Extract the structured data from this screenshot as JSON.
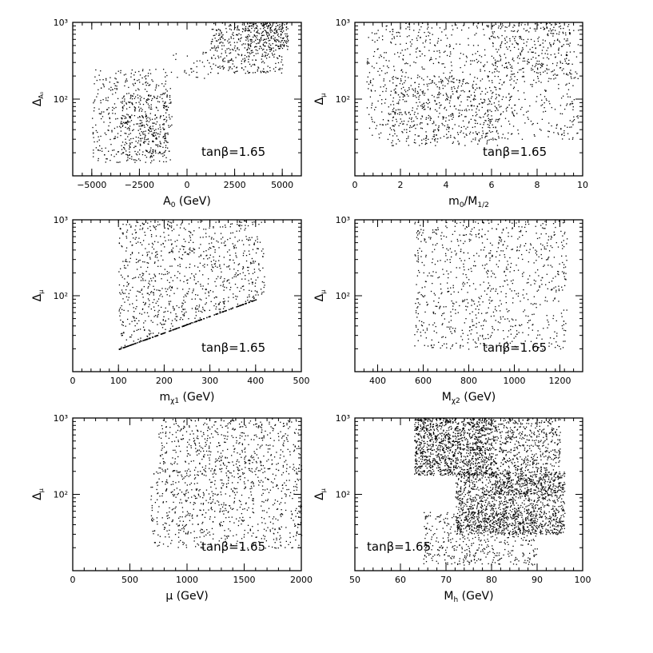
{
  "figure": {
    "top_title": ""
  },
  "chart_data": [
    {
      "type": "scatter",
      "panel": "a0",
      "xlabel_main": "A",
      "xlabel_sub": "0",
      "xlabel_unit": " (GeV)",
      "ylabel_main": "Δ",
      "ylabel_sub": "A₀",
      "annotation": "tanβ=1.65",
      "xlim": [
        -6000,
        6000
      ],
      "ylim": [
        10,
        1000
      ],
      "yscale": "log",
      "xticks": [
        -5000,
        -2500,
        0,
        2500,
        5000
      ],
      "xtick_labels": [
        "−5000",
        "−2500",
        "0",
        "2500",
        "5000"
      ],
      "ytick_labels": [
        "10²",
        "10³"
      ],
      "regions": [
        {
          "x": [
            -5000,
            -800
          ],
          "y": [
            15,
            250
          ],
          "weight": 420
        },
        {
          "x": [
            -3500,
            -1000
          ],
          "y": [
            18,
            120
          ],
          "weight": 260
        },
        {
          "x": [
            1200,
            5000
          ],
          "y": [
            220,
            1000
          ],
          "weight": 380
        },
        {
          "x": [
            3000,
            5300
          ],
          "y": [
            450,
            1000
          ],
          "weight": 180
        },
        {
          "x": [
            -800,
            1200
          ],
          "y": [
            180,
            450
          ],
          "weight": 30
        }
      ]
    },
    {
      "type": "scatter",
      "panel": "m0",
      "xlabel_main": "m",
      "xlabel_sub": "0",
      "xlabel_unit": "/M",
      "xlabel_sub2": "1/2",
      "ylabel_main": "Δ",
      "ylabel_sub": "μ",
      "annotation": "tanβ=1.65",
      "xlim": [
        0,
        10
      ],
      "ylim": [
        10,
        1000
      ],
      "yscale": "log",
      "xticks": [
        0,
        2,
        4,
        6,
        8,
        10
      ],
      "xtick_labels": [
        "0",
        "2",
        "4",
        "6",
        "8",
        "10"
      ],
      "ytick_labels": [
        "10²",
        "10³"
      ],
      "regions": [
        {
          "x": [
            0.5,
            9.8
          ],
          "y": [
            30,
            1000
          ],
          "weight": 900
        },
        {
          "x": [
            1.5,
            6.5
          ],
          "y": [
            25,
            200
          ],
          "weight": 400
        },
        {
          "x": [
            6,
            9.5
          ],
          "y": [
            200,
            1000
          ],
          "weight": 200
        }
      ]
    },
    {
      "type": "scatter",
      "panel": "mchi1",
      "xlabel_main": "m",
      "xlabel_sub": "χ1",
      "xlabel_unit": " (GeV)",
      "ylabel_main": "Δ",
      "ylabel_sub": "μ",
      "annotation": "tanβ=1.65",
      "xlim": [
        0,
        500
      ],
      "ylim": [
        10,
        1000
      ],
      "yscale": "log",
      "xticks": [
        0,
        100,
        200,
        300,
        400,
        500
      ],
      "xtick_labels": [
        "0",
        "100",
        "200",
        "300",
        "400",
        "500"
      ],
      "ytick_labels": [
        "10²",
        "10³"
      ],
      "edge": {
        "x": [
          100,
          400
        ],
        "y": [
          20,
          90
        ]
      },
      "regions": [
        {
          "x": [
            100,
            420
          ],
          "y": [
            20,
            1000
          ],
          "weight": 1100
        }
      ]
    },
    {
      "type": "scatter",
      "panel": "mchi2",
      "xlabel_main": "M",
      "xlabel_sub": "χ2",
      "xlabel_unit": " (GeV)",
      "ylabel_main": "Δ",
      "ylabel_sub": "μ",
      "annotation": "tanβ=1.65",
      "xlim": [
        300,
        1300
      ],
      "ylim": [
        10,
        1000
      ],
      "yscale": "log",
      "xticks": [
        400,
        600,
        800,
        1000,
        1200
      ],
      "xtick_labels": [
        "400",
        "600",
        "800",
        "1000",
        "1200"
      ],
      "ytick_labels": [
        "10²",
        "10³"
      ],
      "regions": [
        {
          "x": [
            560,
            1230
          ],
          "y": [
            20,
            1000
          ],
          "weight": 850
        }
      ]
    },
    {
      "type": "scatter",
      "panel": "mu",
      "xlabel_main": "μ",
      "xlabel_sub": "",
      "xlabel_unit": " (GeV)",
      "ylabel_main": "Δ",
      "ylabel_sub": "μ",
      "annotation": "tanβ=1.65",
      "xlim": [
        0,
        2000
      ],
      "ylim": [
        10,
        1000
      ],
      "yscale": "log",
      "xticks": [
        0,
        500,
        1000,
        1500,
        2000
      ],
      "xtick_labels": [
        "0",
        "500",
        "1000",
        "1500",
        "2000"
      ],
      "ytick_labels": [
        "10²",
        "10³"
      ],
      "regions": [
        {
          "x": [
            680,
            2000
          ],
          "y": [
            20,
            220
          ],
          "weight": 700
        },
        {
          "x": [
            750,
            2000
          ],
          "y": [
            200,
            1000
          ],
          "weight": 500
        }
      ]
    },
    {
      "type": "scatter",
      "panel": "mh",
      "xlabel_main": "M",
      "xlabel_sub": "h",
      "xlabel_unit": " (GeV)",
      "ylabel_main": "Δ",
      "ylabel_sub": "μ",
      "annotation": "tanβ=1.65",
      "xlim": [
        50,
        100
      ],
      "ylim": [
        10,
        1000
      ],
      "yscale": "log",
      "xticks": [
        50,
        60,
        70,
        80,
        90,
        100
      ],
      "xtick_labels": [
        "50",
        "60",
        "70",
        "80",
        "90",
        "100"
      ],
      "ytick_labels": [
        "10²",
        "10³"
      ],
      "regions": [
        {
          "x": [
            63,
            80
          ],
          "y": [
            180,
            1000
          ],
          "weight": 1300
        },
        {
          "x": [
            72,
            96
          ],
          "y": [
            30,
            200
          ],
          "weight": 1500
        },
        {
          "x": [
            80,
            95
          ],
          "y": [
            100,
            1000
          ],
          "weight": 700
        },
        {
          "x": [
            65,
            90
          ],
          "y": [
            12,
            60
          ],
          "weight": 500
        }
      ]
    }
  ]
}
